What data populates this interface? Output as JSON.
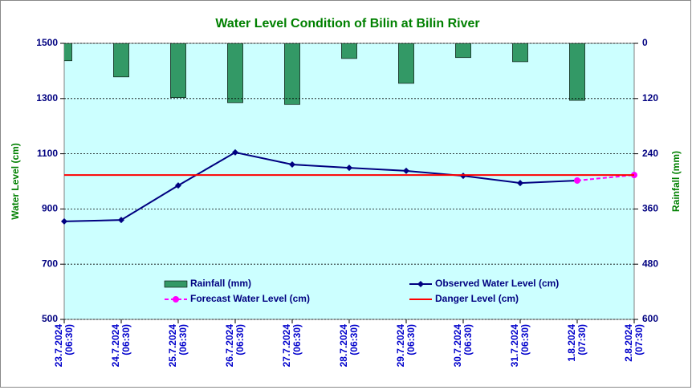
{
  "chart_data": {
    "type": "combo",
    "title": "Water Level Condition of Bilin at Bilin River",
    "ylabel": "Water Level (cm)",
    "y2label": "Rainfall (mm)",
    "categories": [
      [
        "23.7.2024",
        "(06:30)"
      ],
      [
        "24.7.2024",
        "(06:30)"
      ],
      [
        "25.7.2024",
        "(06:30)"
      ],
      [
        "26.7.2024",
        "(06:30)"
      ],
      [
        "27.7.2024",
        "(06:30)"
      ],
      [
        "28.7.2024",
        "(06:30)"
      ],
      [
        "29.7.2024",
        "(06:30)"
      ],
      [
        "30.7.2024",
        "(06:30)"
      ],
      [
        "31.7.2024",
        "(06:30)"
      ],
      [
        "1.8.2024",
        "(07:30)"
      ],
      [
        "2.8.2024",
        "(07:30)"
      ]
    ],
    "ylim": [
      500,
      1500
    ],
    "yticks": [
      500,
      700,
      900,
      1100,
      1300,
      1500
    ],
    "y2lim": [
      0,
      600
    ],
    "y2ticks": [
      0,
      120,
      240,
      360,
      480,
      600
    ],
    "y2reverse": true,
    "grid": true,
    "series": [
      {
        "name": "Rainfall (mm)",
        "type": "bar",
        "axis": "y2",
        "color": "#339966",
        "values": [
          38,
          73,
          118,
          129,
          133,
          33,
          87,
          31,
          40,
          124,
          null
        ]
      },
      {
        "name": "Observed Water Level (cm)",
        "type": "line",
        "marker": "diamond",
        "color": "#000080",
        "values": [
          855,
          860,
          985,
          1105,
          1061,
          1049,
          1038,
          1020,
          994,
          1003,
          null
        ]
      },
      {
        "name": "Forecast Water Level (cm)",
        "type": "line",
        "marker": "circle",
        "dash": true,
        "color": "#ff00ff",
        "values": [
          null,
          null,
          null,
          null,
          null,
          null,
          null,
          null,
          null,
          1003,
          1023
        ]
      },
      {
        "name": "Danger Level (cm)",
        "type": "line",
        "marker": "none",
        "color": "#ff0000",
        "values": [
          1023,
          1023,
          1023,
          1023,
          1023,
          1023,
          1023,
          1023,
          1023,
          1023,
          1023
        ]
      }
    ]
  }
}
